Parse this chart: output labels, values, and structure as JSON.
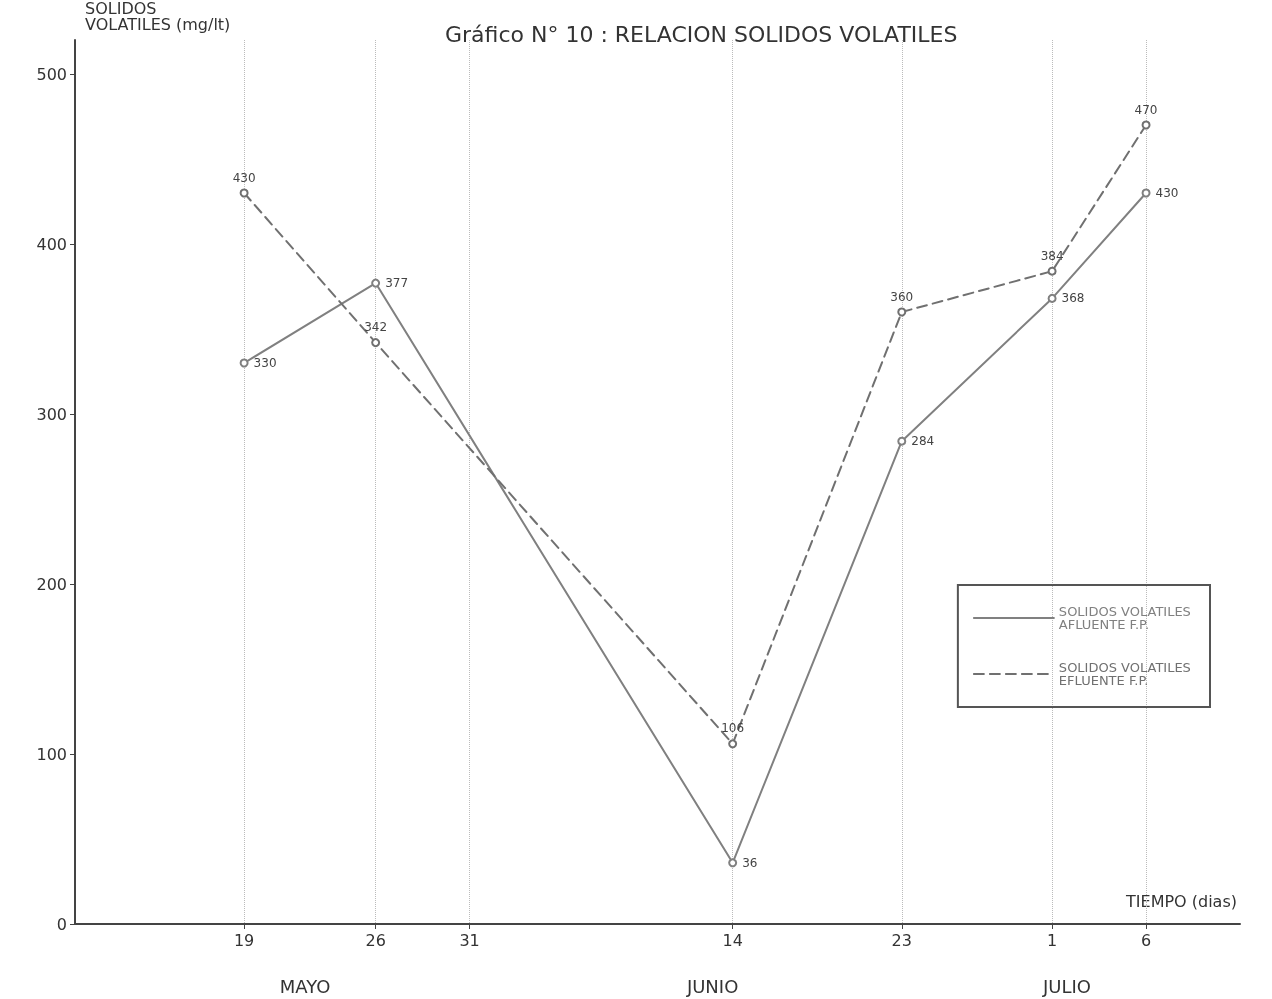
{
  "chart_data": {
    "type": "line",
    "title": "Gráfico N° 10 : RELACION SOLIDOS VOLATILES",
    "xlabel": "TIEMPO (dias)",
    "ylabel": "SOLIDOS\nVOLATILES (mg/lt)",
    "x": [
      "--05-19",
      "--05-26",
      "--06-14",
      "--06-23",
      "--07-01",
      "--07-06"
    ],
    "xlim": [
      "--05-10",
      "--07-11"
    ],
    "xticks": [
      {
        "value": "--05-19",
        "label": "19"
      },
      {
        "value": "--05-26",
        "label": "26"
      },
      {
        "value": "--05-31",
        "label": "31"
      },
      {
        "value": "--06-14",
        "label": "14"
      },
      {
        "value": "--06-23",
        "label": "23"
      },
      {
        "value": "--07-01",
        "label": "1"
      },
      {
        "value": "--07-06",
        "label": "6"
      }
    ],
    "ylim": [
      0,
      520
    ],
    "yticks": [
      0,
      100,
      200,
      300,
      400,
      500
    ],
    "series": [
      {
        "name": "SOLIDOS VOLATILES AFLUENTE F.P.",
        "color": "#808080",
        "line_style": "solid",
        "values": [
          330,
          377,
          36,
          284,
          368,
          430
        ]
      },
      {
        "name": "SOLIDOS VOLATILES EFLUENTE F.P.",
        "color": "#707070",
        "line_style": "dashed",
        "values": [
          430,
          342,
          106,
          360,
          384,
          470
        ]
      }
    ],
    "data_labels": true,
    "marker": "circle",
    "grid": "x",
    "legend": "right",
    "annotations": [
      "MAYO",
      "JUNIO",
      "JULIO"
    ]
  }
}
